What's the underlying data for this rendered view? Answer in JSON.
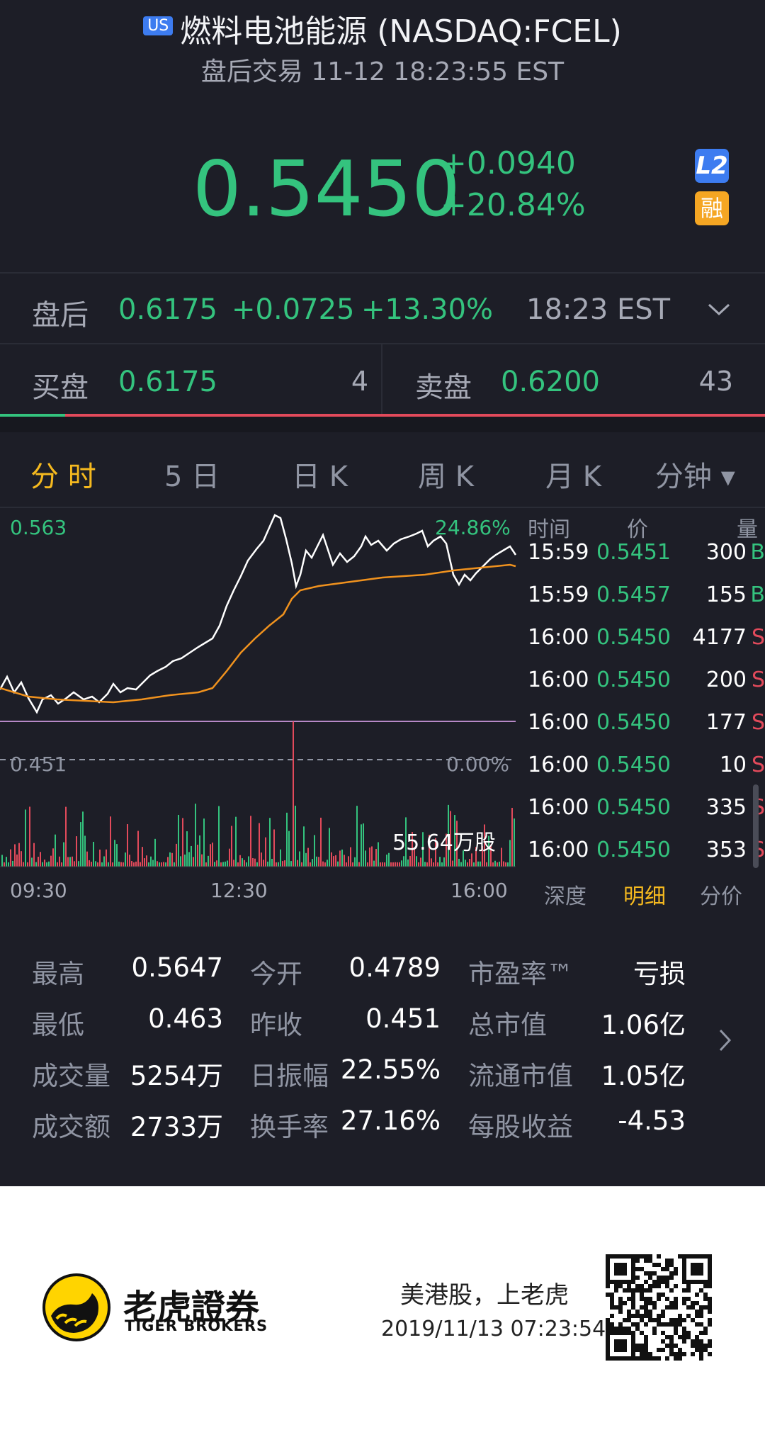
{
  "header": {
    "market_badge": "US",
    "title": "燃料电池能源 (NASDAQ:FCEL)",
    "subtitle": "盘后交易 11-12 18:23:55 EST"
  },
  "quote": {
    "price": "0.5450",
    "change": "+0.0940",
    "change_pct": "+20.84%",
    "badge_l2": "L2",
    "badge_margin": "融"
  },
  "after_hours": {
    "label": "盘后",
    "price": "0.6175",
    "change": "+0.0725",
    "change_pct": "+13.30%",
    "time": "18:23 EST"
  },
  "bid_ask": {
    "bid_label": "买盘",
    "bid_price": "0.6175",
    "bid_size": "4",
    "ask_label": "卖盘",
    "ask_price": "0.6200",
    "ask_size": "43"
  },
  "chart_tabs": [
    "分 时",
    "5 日",
    "日 K",
    "周 K",
    "月 K",
    "分钟 ▾"
  ],
  "chart": {
    "high_price": "0.563",
    "high_pct": "24.86%",
    "low_price": "0.451",
    "low_pct": "0.00%",
    "volume_label": "55.64万股",
    "x_ticks": [
      "09:30",
      "12:30",
      "16:00"
    ]
  },
  "chart_data": {
    "type": "line",
    "x": [
      "09:30",
      "12:30",
      "16:00"
    ],
    "ylim": [
      0.451,
      0.563
    ],
    "reference_price": 0.451,
    "series": [],
    "volume_total": "55.64万股"
  },
  "trade_list": {
    "headers": [
      "时间",
      "价",
      "量"
    ],
    "rows": [
      {
        "time": "15:59",
        "price": "0.5451",
        "vol": "300",
        "side": "B"
      },
      {
        "time": "15:59",
        "price": "0.5457",
        "vol": "155",
        "side": "B"
      },
      {
        "time": "16:00",
        "price": "0.5450",
        "vol": "4177",
        "side": "S"
      },
      {
        "time": "16:00",
        "price": "0.5450",
        "vol": "200",
        "side": "S"
      },
      {
        "time": "16:00",
        "price": "0.5450",
        "vol": "177",
        "side": "S"
      },
      {
        "time": "16:00",
        "price": "0.5450",
        "vol": "10",
        "side": "S"
      },
      {
        "time": "16:00",
        "price": "0.5450",
        "vol": "335",
        "side": "S"
      },
      {
        "time": "16:00",
        "price": "0.5450",
        "vol": "353",
        "side": "S"
      }
    ],
    "sub_tabs": [
      "深度",
      "明细",
      "分价"
    ]
  },
  "stats": [
    [
      {
        "label": "最高",
        "value": "0.5647"
      },
      {
        "label": "今开",
        "value": "0.4789"
      },
      {
        "label": "市盈率™",
        "value": "亏损"
      }
    ],
    [
      {
        "label": "最低",
        "value": "0.463"
      },
      {
        "label": "昨收",
        "value": "0.451"
      },
      {
        "label": "总市值",
        "value": "1.06亿"
      }
    ],
    [
      {
        "label": "成交量",
        "value": "5254万"
      },
      {
        "label": "日振幅",
        "value": "22.55%"
      },
      {
        "label": "流通市值",
        "value": "1.05亿"
      }
    ],
    [
      {
        "label": "成交额",
        "value": "2733万"
      },
      {
        "label": "换手率",
        "value": "27.16%"
      },
      {
        "label": "每股收益",
        "value": "-4.53"
      }
    ]
  ],
  "footer": {
    "logo_cn": "老虎證券",
    "logo_en": "TIGER BROKERS",
    "slogan": "美港股，上老虎",
    "timestamp": "2019/11/13 07:23:54"
  },
  "colors": {
    "background": "#1d1e27",
    "up": "#34c37e",
    "down": "#e24a5b",
    "accent": "#f5b91f",
    "avg_line": "#f0921e"
  }
}
